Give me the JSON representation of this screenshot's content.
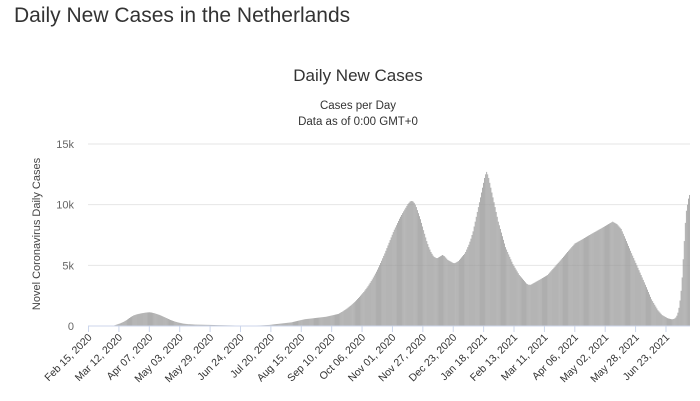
{
  "page": {
    "title": "Daily New Cases in the Netherlands"
  },
  "chart_data": {
    "type": "bar",
    "title": "Daily New Cases",
    "subtitle_lines": [
      "Cases per Day",
      "Data as of 0:00 GMT+0"
    ],
    "ylabel": "Novel Coronavirus Daily Cases",
    "xlabel": "",
    "ylim": [
      0,
      15000
    ],
    "y_ticks": [
      "0",
      "5k",
      "10k",
      "15k"
    ],
    "y_tick_values": [
      0,
      5000,
      10000,
      15000
    ],
    "grid": true,
    "legend": "none",
    "bar_color": "#9a9a9a",
    "x_start": "Feb 15, 2020",
    "x_end": "Jul 14, 2021",
    "x_ticks": [
      "Feb 15, 2020",
      "Mar 12, 2020",
      "Apr 07, 2020",
      "May 03, 2020",
      "May 29, 2020",
      "Jun 24, 2020",
      "Jul 20, 2020",
      "Aug 15, 2020",
      "Sep 10, 2020",
      "Oct 06, 2020",
      "Nov 01, 2020",
      "Nov 27, 2020",
      "Dec 23, 2020",
      "Jan 18, 2021",
      "Feb 13, 2021",
      "Mar 11, 2021",
      "Apr 06, 2021",
      "May 02, 2021",
      "May 28, 2021",
      "Jun 23, 2021"
    ],
    "series": [
      {
        "values": [
          0,
          0,
          0,
          0,
          0,
          0,
          0,
          0,
          0,
          0,
          0,
          0,
          0,
          0,
          0,
          1,
          2,
          7,
          5,
          6,
          6,
          10,
          20,
          30,
          40,
          60,
          90,
          120,
          150,
          180,
          210,
          250,
          290,
          330,
          380,
          430,
          480,
          540,
          600,
          660,
          720,
          770,
          820,
          870,
          900,
          930,
          960,
          980,
          1000,
          1020,
          1040,
          1055,
          1070,
          1085,
          1100,
          1110,
          1120,
          1125,
          1130,
          1120,
          1110,
          1090,
          1070,
          1050,
          1020,
          990,
          960,
          930,
          900,
          860,
          820,
          780,
          740,
          700,
          660,
          620,
          580,
          540,
          500,
          470,
          440,
          410,
          380,
          350,
          330,
          300,
          280,
          260,
          240,
          220,
          200,
          190,
          180,
          170,
          160,
          150,
          145,
          140,
          135,
          130,
          125,
          120,
          118,
          116,
          114,
          112,
          110,
          108,
          106,
          104,
          102,
          100,
          98,
          96,
          94,
          92,
          90,
          88,
          86,
          84,
          82,
          80,
          78,
          76,
          74,
          72,
          70,
          68,
          66,
          64,
          62,
          60,
          58,
          56,
          54,
          52,
          50,
          48,
          46,
          44,
          42,
          40,
          38,
          36,
          35,
          34,
          33,
          32,
          31,
          30,
          30,
          30,
          30,
          30,
          30,
          32,
          34,
          36,
          38,
          40,
          42,
          44,
          46,
          48,
          50,
          55,
          60,
          65,
          70,
          75,
          80,
          85,
          90,
          100,
          110,
          120,
          130,
          140,
          150,
          160,
          170,
          180,
          190,
          200,
          210,
          220,
          230,
          240,
          250,
          260,
          270,
          280,
          290,
          300,
          320,
          340,
          360,
          380,
          400,
          420,
          440,
          460,
          480,
          500,
          520,
          540,
          560,
          570,
          580,
          590,
          600,
          610,
          620,
          630,
          640,
          650,
          660,
          670,
          680,
          690,
          700,
          710,
          720,
          730,
          740,
          750,
          760,
          780,
          800,
          820,
          840,
          860,
          880,
          900,
          920,
          940,
          960,
          980,
          1000,
          1050,
          1100,
          1150,
          1200,
          1260,
          1320,
          1380,
          1440,
          1510,
          1580,
          1650,
          1720,
          1800,
          1880,
          1960,
          2040,
          2130,
          2220,
          2310,
          2400,
          2500,
          2600,
          2700,
          2800,
          2920,
          3040,
          3160,
          3280,
          3420,
          3560,
          3700,
          3840,
          4000,
          4160,
          4320,
          4480,
          4650,
          4830,
          5010,
          5190,
          5380,
          5580,
          5780,
          5980,
          6200,
          6420,
          6640,
          6860,
          7080,
          7300,
          7520,
          7740,
          7940,
          8120,
          8300,
          8480,
          8660,
          8840,
          9000,
          9150,
          9300,
          9450,
          9600,
          9750,
          9900,
          10050,
          10150,
          10250,
          10300,
          10300,
          10250,
          10150,
          10000,
          9800,
          9550,
          9300,
          9050,
          8800,
          8500,
          8200,
          7900,
          7600,
          7300,
          7000,
          6750,
          6500,
          6300,
          6100,
          5950,
          5800,
          5700,
          5650,
          5600,
          5600,
          5650,
          5700,
          5750,
          5800,
          5850,
          5800,
          5750,
          5650,
          5550,
          5450,
          5400,
          5350,
          5300,
          5250,
          5200,
          5180,
          5200,
          5250,
          5300,
          5350,
          5450,
          5550,
          5650,
          5750,
          5850,
          5950,
          6100,
          6300,
          6500,
          6700,
          6950,
          7200,
          7500,
          7800,
          8200,
          8600,
          9000,
          9400,
          9800,
          10200,
          10600,
          11000,
          11400,
          11800,
          12200,
          12500,
          12700,
          12500,
          12200,
          11800,
          11400,
          11000,
          10600,
          10200,
          9800,
          9400,
          9000,
          8600,
          8300,
          8000,
          7700,
          7400,
          7100,
          6800,
          6500,
          6300,
          6100,
          5900,
          5700,
          5500,
          5300,
          5100,
          4950,
          4800,
          4650,
          4500,
          4350,
          4200,
          4100,
          4000,
          3900,
          3800,
          3700,
          3600,
          3500,
          3450,
          3400,
          3400,
          3400,
          3450,
          3500,
          3550,
          3600,
          3650,
          3700,
          3750,
          3800,
          3850,
          3900,
          3950,
          4000,
          4050,
          4100,
          4150,
          4200,
          4300,
          4400,
          4500,
          4600,
          4700,
          4800,
          4900,
          5000,
          5100,
          5200,
          5300,
          5400,
          5500,
          5600,
          5700,
          5800,
          5900,
          6000,
          6100,
          6200,
          6300,
          6400,
          6500,
          6600,
          6700,
          6800,
          6850,
          6900,
          6950,
          7000,
          7050,
          7100,
          7150,
          7200,
          7250,
          7300,
          7350,
          7400,
          7450,
          7500,
          7550,
          7600,
          7650,
          7700,
          7750,
          7800,
          7850,
          7900,
          7950,
          8000,
          8050,
          8100,
          8150,
          8200,
          8250,
          8300,
          8350,
          8400,
          8450,
          8500,
          8550,
          8600,
          8550,
          8500,
          8450,
          8400,
          8300,
          8200,
          8100,
          8000,
          7800,
          7600,
          7400,
          7200,
          7000,
          6800,
          6600,
          6400,
          6200,
          6000,
          5800,
          5600,
          5400,
          5200,
          5000,
          4800,
          4600,
          4400,
          4200,
          4000,
          3800,
          3600,
          3400,
          3200,
          3000,
          2800,
          2600,
          2400,
          2200,
          2050,
          1900,
          1750,
          1600,
          1450,
          1300,
          1200,
          1100,
          1000,
          900,
          850,
          800,
          750,
          700,
          650,
          620,
          600,
          580,
          560,
          560,
          580,
          620,
          700,
          850,
          1100,
          1500,
          2100,
          2900,
          4000,
          5500,
          7000,
          8500,
          9500,
          10000,
          10500,
          10800
        ]
      }
    ]
  }
}
